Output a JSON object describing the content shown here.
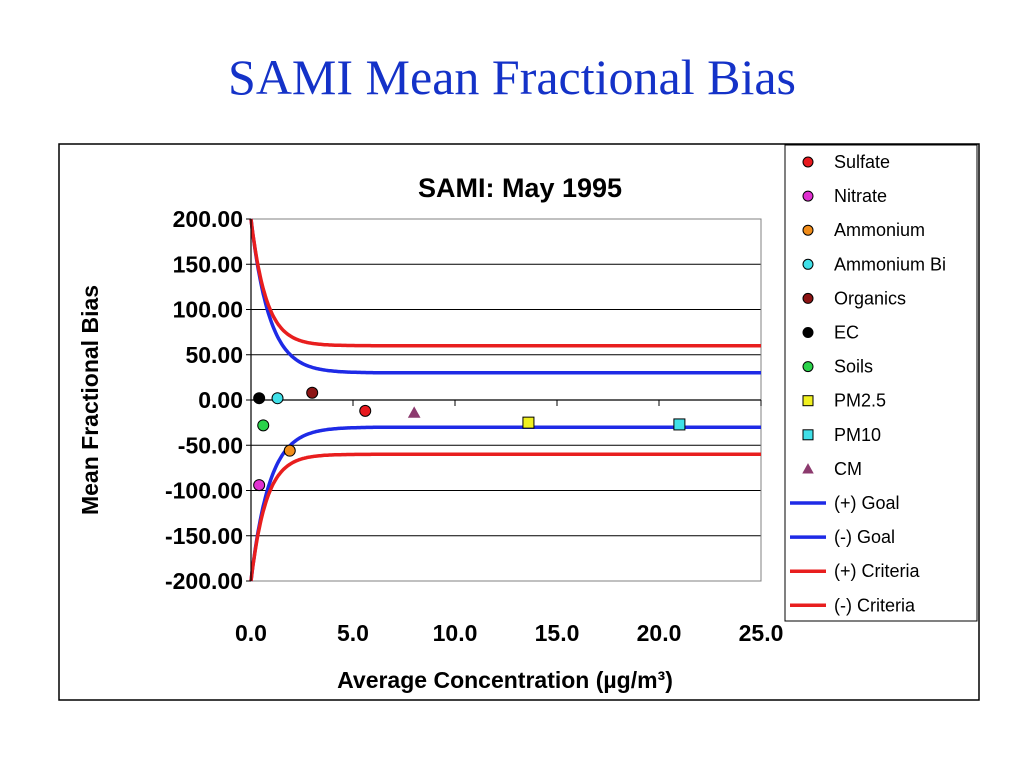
{
  "slide": {
    "title": "SAMI Mean Fractional Bias"
  },
  "chart_data": {
    "type": "scatter",
    "title": "SAMI: May 1995",
    "xlabel": "Average Concentration (µg/m³)",
    "ylabel": "Mean Fractional Bias",
    "xlim": [
      0,
      25
    ],
    "ylim": [
      -200,
      200
    ],
    "x_ticks": [
      "0.0",
      "5.0",
      "10.0",
      "15.0",
      "20.0",
      "25.0"
    ],
    "y_ticks": [
      "200.00",
      "150.00",
      "100.00",
      "50.00",
      "0.00",
      "-50.00",
      "-100.00",
      "-150.00",
      "-200.00"
    ],
    "grid": "horizontal",
    "legend_position": "right",
    "series": [
      {
        "name": "Sulfate",
        "marker": "circle",
        "color": "#e8191e",
        "points": [
          [
            5.6,
            -12
          ]
        ]
      },
      {
        "name": "Nitrate",
        "marker": "circle",
        "color": "#e030d0",
        "points": [
          [
            0.4,
            -94
          ]
        ]
      },
      {
        "name": "Ammonium",
        "marker": "circle",
        "color": "#f08c1a",
        "points": [
          [
            1.9,
            -56
          ]
        ]
      },
      {
        "name": "Ammonium Bi",
        "marker": "circle",
        "color": "#40e0e8",
        "points": [
          [
            1.3,
            2
          ]
        ]
      },
      {
        "name": "Organics",
        "marker": "circle",
        "color": "#8c1414",
        "points": [
          [
            3.0,
            8
          ]
        ]
      },
      {
        "name": "EC",
        "marker": "circle",
        "color": "#000000",
        "points": [
          [
            0.4,
            2
          ]
        ]
      },
      {
        "name": "Soils",
        "marker": "circle",
        "color": "#2ad24a",
        "points": [
          [
            0.6,
            -28
          ]
        ]
      },
      {
        "name": "PM2.5",
        "marker": "square",
        "color": "#f0f020",
        "points": [
          [
            13.6,
            -25
          ]
        ]
      },
      {
        "name": "PM10",
        "marker": "square",
        "color": "#40e0e8",
        "points": [
          [
            21.0,
            -27
          ]
        ]
      },
      {
        "name": "CM",
        "marker": "triangle",
        "color": "#8c3a6e",
        "points": [
          [
            8.0,
            -14
          ]
        ]
      }
    ],
    "curves": [
      {
        "name": "(+) Goal",
        "color": "#1e2ae6",
        "asymptote": 30,
        "sign": 1
      },
      {
        "name": "(-) Goal",
        "color": "#1e2ae6",
        "asymptote": 30,
        "sign": -1
      },
      {
        "name": "(+) Criteria",
        "color": "#e81e1e",
        "asymptote": 60,
        "sign": 1
      },
      {
        "name": "(-) Criteria",
        "color": "#e81e1e",
        "asymptote": 60,
        "sign": -1
      }
    ]
  }
}
